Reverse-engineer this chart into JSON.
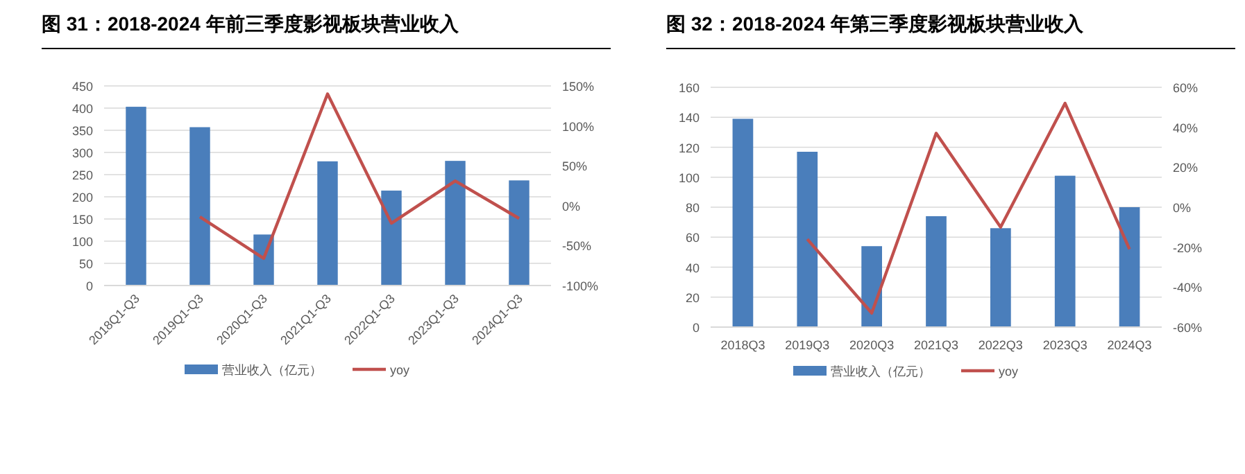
{
  "chart_data": [
    {
      "type": "bar",
      "title": "图 31：2018-2024 年前三季度影视板块营业收入",
      "categories": [
        "2018Q1-Q3",
        "2019Q1-Q3",
        "2020Q1-Q3",
        "2021Q1-Q3",
        "2022Q1-Q3",
        "2023Q1-Q3",
        "2024Q1-Q3"
      ],
      "series": [
        {
          "name": "营业收入（亿元）",
          "color": "#4a7ebb",
          "values": [
            403,
            357,
            115,
            280,
            214,
            281,
            237
          ]
        },
        {
          "name": "yoy",
          "type": "line",
          "axis": "y2",
          "color": "#c0504d",
          "values": [
            null,
            -14,
            -66,
            140,
            -22,
            31,
            -16
          ]
        }
      ],
      "ylim": [
        0,
        450
      ],
      "yticks": [
        0,
        50,
        100,
        150,
        200,
        250,
        300,
        350,
        400,
        450
      ],
      "y2lim": [
        -100,
        150
      ],
      "y2ticks": [
        {
          "value": -100,
          "label": "-100%"
        },
        {
          "value": -50,
          "label": "-50%"
        },
        {
          "value": 0,
          "label": "0%"
        },
        {
          "value": 50,
          "label": "50%"
        },
        {
          "value": 100,
          "label": "100%"
        },
        {
          "value": 150,
          "label": "150%"
        }
      ],
      "grid": "y",
      "legend": "bottom"
    },
    {
      "type": "bar",
      "title": "图 32：2018-2024 年第三季度影视板块营业收入",
      "categories": [
        "2018Q3",
        "2019Q3",
        "2020Q3",
        "2021Q3",
        "2022Q3",
        "2023Q3",
        "2024Q3"
      ],
      "series": [
        {
          "name": "营业收入（亿元）",
          "color": "#4a7ebb",
          "values": [
            139,
            117,
            54,
            74,
            66,
            101,
            80
          ]
        },
        {
          "name": "yoy",
          "type": "line",
          "axis": "y2",
          "color": "#c0504d",
          "values": [
            null,
            -16,
            -53,
            37,
            -10,
            52,
            -21
          ]
        }
      ],
      "ylim": [
        0,
        160
      ],
      "yticks": [
        0,
        20,
        40,
        60,
        80,
        100,
        120,
        140,
        160
      ],
      "y2lim": [
        -60,
        60
      ],
      "y2ticks": [
        {
          "value": -60,
          "label": "-60%"
        },
        {
          "value": -40,
          "label": "-40%"
        },
        {
          "value": -20,
          "label": "-20%"
        },
        {
          "value": 0,
          "label": "0%"
        },
        {
          "value": 20,
          "label": "20%"
        },
        {
          "value": 40,
          "label": "40%"
        },
        {
          "value": 60,
          "label": "60%"
        }
      ],
      "grid": "y",
      "legend": "bottom"
    }
  ]
}
